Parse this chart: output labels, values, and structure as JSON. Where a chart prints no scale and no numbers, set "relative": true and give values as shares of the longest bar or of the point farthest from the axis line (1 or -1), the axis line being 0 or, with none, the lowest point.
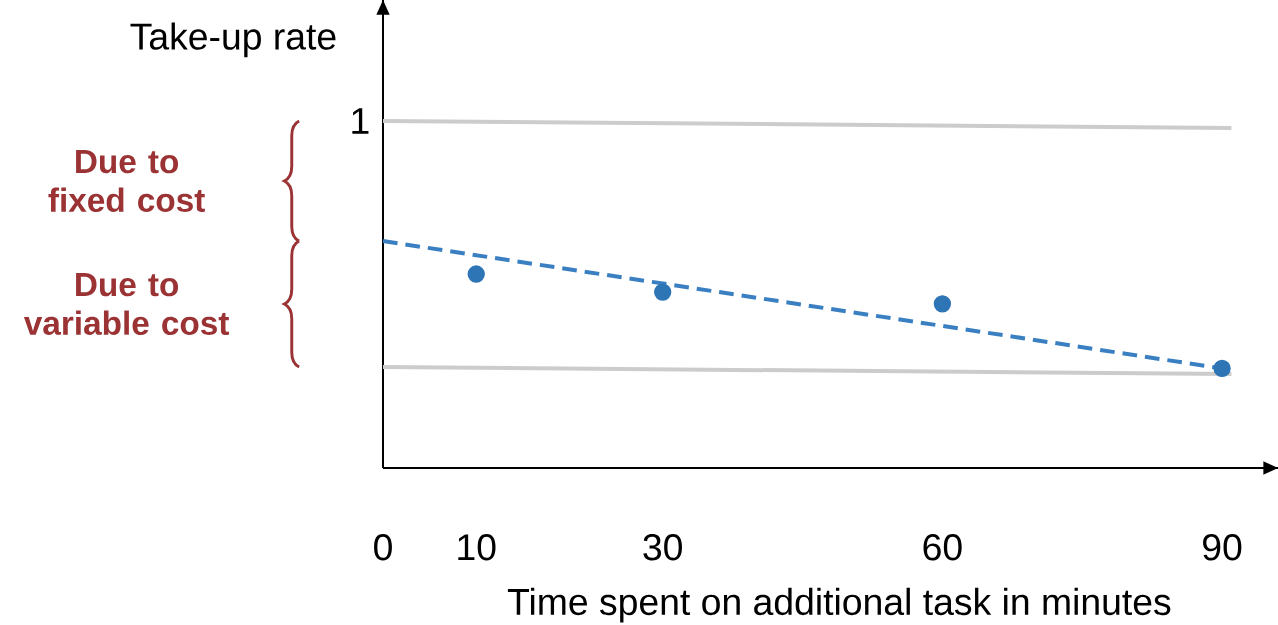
{
  "chart_data": {
    "type": "scatter",
    "relative": true,
    "xlabel": "Time spent on additional task in minutes",
    "ylabel": "Take-up rate",
    "xlim": [
      0,
      96
    ],
    "xticks": [
      0,
      10,
      30,
      60,
      90
    ],
    "grid": false,
    "series": [
      {
        "color": "#2e75b6",
        "marker": "circle",
        "x": [
          10,
          30,
          60,
          90
        ],
        "values": [
          0.559,
          0.507,
          0.473,
          0.287
        ]
      },
      {
        "type": "line",
        "color": "#3a7fc1",
        "line_style": "dashed",
        "marker": "none",
        "x": [
          0,
          90
        ],
        "values": [
          0.654,
          0.287
        ]
      },
      {
        "type": "line",
        "color": "#cccccc",
        "marker": "none",
        "x": [
          0,
          91
        ],
        "values": [
          1,
          0.98
        ]
      },
      {
        "type": "line",
        "color": "#cccccc",
        "marker": "none",
        "x": [
          0,
          91
        ],
        "values": [
          0.291,
          0.271
        ]
      }
    ],
    "annotations": [
      "Due to fixed cost",
      "Due to variable cost",
      {
        "text": "1",
        "x": 0,
        "y": 1
      }
    ]
  }
}
